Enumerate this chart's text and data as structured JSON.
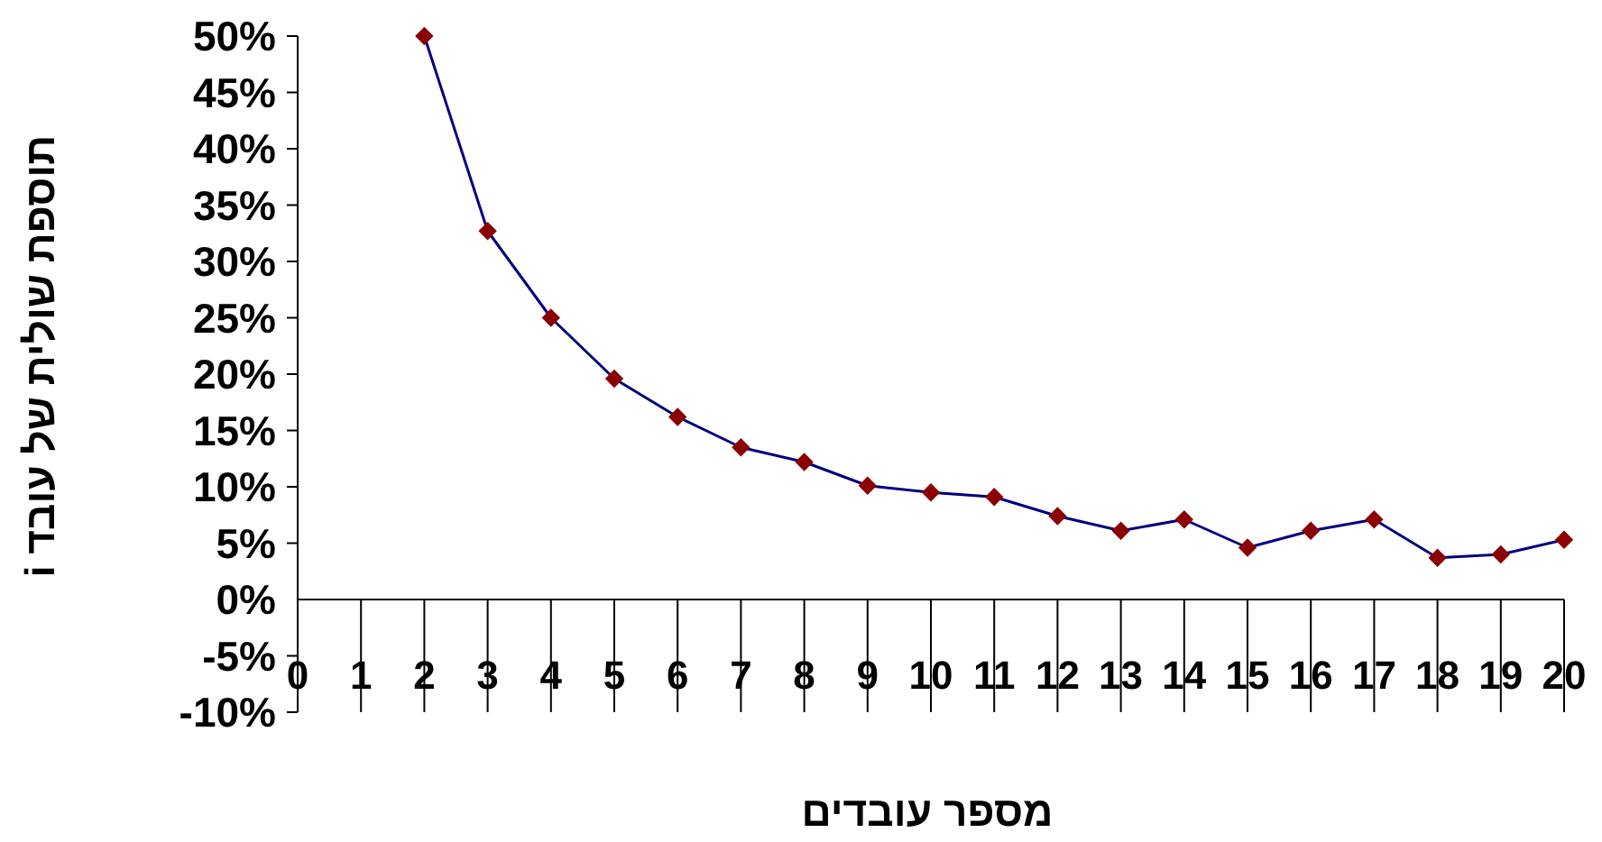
{
  "chart_data": {
    "type": "line",
    "xlabel": "מספר עובדים",
    "ylabel": "תוספת שולית של עובד i",
    "xlim": [
      0,
      20
    ],
    "xticks": [
      0,
      1,
      2,
      3,
      4,
      5,
      6,
      7,
      8,
      9,
      10,
      11,
      12,
      13,
      14,
      15,
      16,
      17,
      18,
      19,
      20
    ],
    "ylim": [
      -10,
      50
    ],
    "yticks": [
      {
        "value": -10,
        "label": "-10%"
      },
      {
        "value": -5,
        "label": "-5%"
      },
      {
        "value": 0,
        "label": "0%"
      },
      {
        "value": 5,
        "label": "5%"
      },
      {
        "value": 10,
        "label": "10%"
      },
      {
        "value": 15,
        "label": "15%"
      },
      {
        "value": 20,
        "label": "20%"
      },
      {
        "value": 25,
        "label": "25%"
      },
      {
        "value": 30,
        "label": "30%"
      },
      {
        "value": 35,
        "label": "35%"
      },
      {
        "value": 40,
        "label": "40%"
      },
      {
        "value": 45,
        "label": "45%"
      },
      {
        "value": 50,
        "label": "50%"
      }
    ],
    "grid": false,
    "legend": false,
    "marker": "diamond",
    "line_style": "solid",
    "series": [
      {
        "color": "#000080",
        "colors": [
          "#8b0000",
          "#8b0000",
          "#8b0000",
          "#8b0000",
          "#8b0000",
          "#8b0000",
          "#8b0000",
          "#8b0000",
          "#8b0000",
          "#8b0000",
          "#8b0000",
          "#8b0000",
          "#8b0000",
          "#8b0000",
          "#8b0000",
          "#8b0000",
          "#8b0000",
          "#8b0000",
          "#8b0000"
        ],
        "x": [
          2,
          3,
          4,
          5,
          6,
          7,
          8,
          9,
          10,
          11,
          12,
          13,
          14,
          15,
          16,
          17,
          18,
          19,
          20
        ],
        "values": [
          50,
          32.7,
          25,
          19.6,
          16.2,
          13.5,
          12.2,
          10.1,
          9.5,
          9.1,
          7.4,
          6.1,
          7.1,
          4.6,
          6.1,
          7.1,
          3.7,
          4,
          5.3
        ]
      }
    ]
  }
}
